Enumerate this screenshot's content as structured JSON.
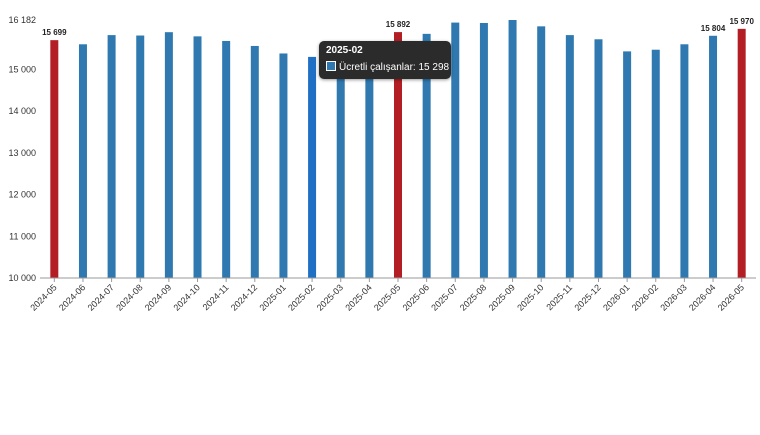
{
  "chart_data": {
    "type": "bar",
    "categories": [
      "2024-05",
      "2024-06",
      "2024-07",
      "2024-08",
      "2024-09",
      "2024-10",
      "2024-11",
      "2024-12",
      "2025-01",
      "2025-02",
      "2025-03",
      "2025-04",
      "2025-05",
      "2025-06",
      "2025-07",
      "2025-08",
      "2025-09",
      "2025-10",
      "2025-11",
      "2025-12",
      "2026-01",
      "2026-02",
      "2026-03",
      "2026-04",
      "2026-05"
    ],
    "series": [
      {
        "name": "Ücretli çalışanlar",
        "values": [
          15699,
          15600,
          15820,
          15810,
          15890,
          15790,
          15680,
          15560,
          15380,
          15298,
          15380,
          15640,
          15892,
          15850,
          16120,
          16110,
          16182,
          16030,
          15820,
          15720,
          15430,
          15470,
          15600,
          15804,
          15970
        ]
      }
    ],
    "highlighted_categories": [
      "2024-05",
      "2025-05",
      "2026-05"
    ],
    "data_labels": [
      {
        "category": "2024-05",
        "text": "15 699"
      },
      {
        "category": "2025-05",
        "text": "15 892"
      },
      {
        "category": "2026-04",
        "text": "15 804"
      },
      {
        "category": "2026-05",
        "text": "15 970"
      }
    ],
    "ylim": [
      10000,
      16182
    ],
    "yticks": [
      "10 000",
      "11 000",
      "12 000",
      "13 000",
      "14 000",
      "15 000",
      "16 182"
    ],
    "ytick_values": [
      10000,
      11000,
      12000,
      13000,
      14000,
      15000,
      16182
    ],
    "xlabel": "",
    "ylabel": "",
    "title": "",
    "grid": false,
    "colors": {
      "bar": "#2f79b0",
      "bar_hover": "#1f6fc5",
      "highlight": "#b31e24",
      "axis": "#9a9a9a"
    },
    "tooltip": {
      "category": "2025-02",
      "title": "2025-02",
      "series_name": "Ücretli çalışanlar",
      "value_text": "15 298"
    }
  }
}
